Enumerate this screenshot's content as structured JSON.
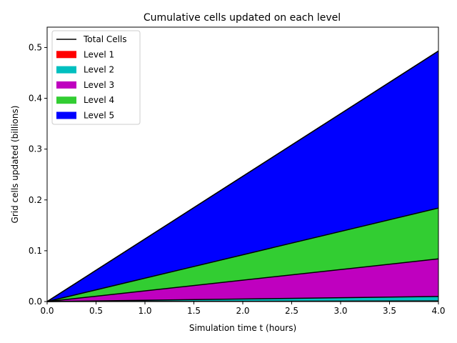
{
  "chart_data": {
    "type": "area",
    "title": "Cumulative cells updated on each level",
    "xlabel": "Simulation time t (hours)",
    "ylabel": "Grid cells updated (billions)",
    "xlim": [
      0,
      4
    ],
    "ylim": [
      0,
      0.54
    ],
    "xticks": [
      "0.0",
      "0.5",
      "1.0",
      "1.5",
      "2.0",
      "2.5",
      "3.0",
      "3.5",
      "4.0"
    ],
    "yticks": [
      "0.0",
      "0.1",
      "0.2",
      "0.3",
      "0.4",
      "0.5"
    ],
    "grid": false,
    "legend_position": "top-left",
    "stacked": true,
    "x": [
      0,
      4
    ],
    "series": [
      {
        "name": "Level 1",
        "color": "#ff0000",
        "values": [
          0,
          0.001
        ]
      },
      {
        "name": "Level 2",
        "color": "#00bfbf",
        "values": [
          0,
          0.009
        ]
      },
      {
        "name": "Level 3",
        "color": "#bf00bf",
        "values": [
          0,
          0.074
        ]
      },
      {
        "name": "Level 4",
        "color": "#32cd32",
        "values": [
          0,
          0.1
        ]
      },
      {
        "name": "Level 5",
        "color": "#0000ff",
        "values": [
          0,
          0.309
        ]
      }
    ],
    "total_line": {
      "name": "Total Cells",
      "color": "#000000",
      "values": [
        0,
        0.493
      ]
    }
  }
}
